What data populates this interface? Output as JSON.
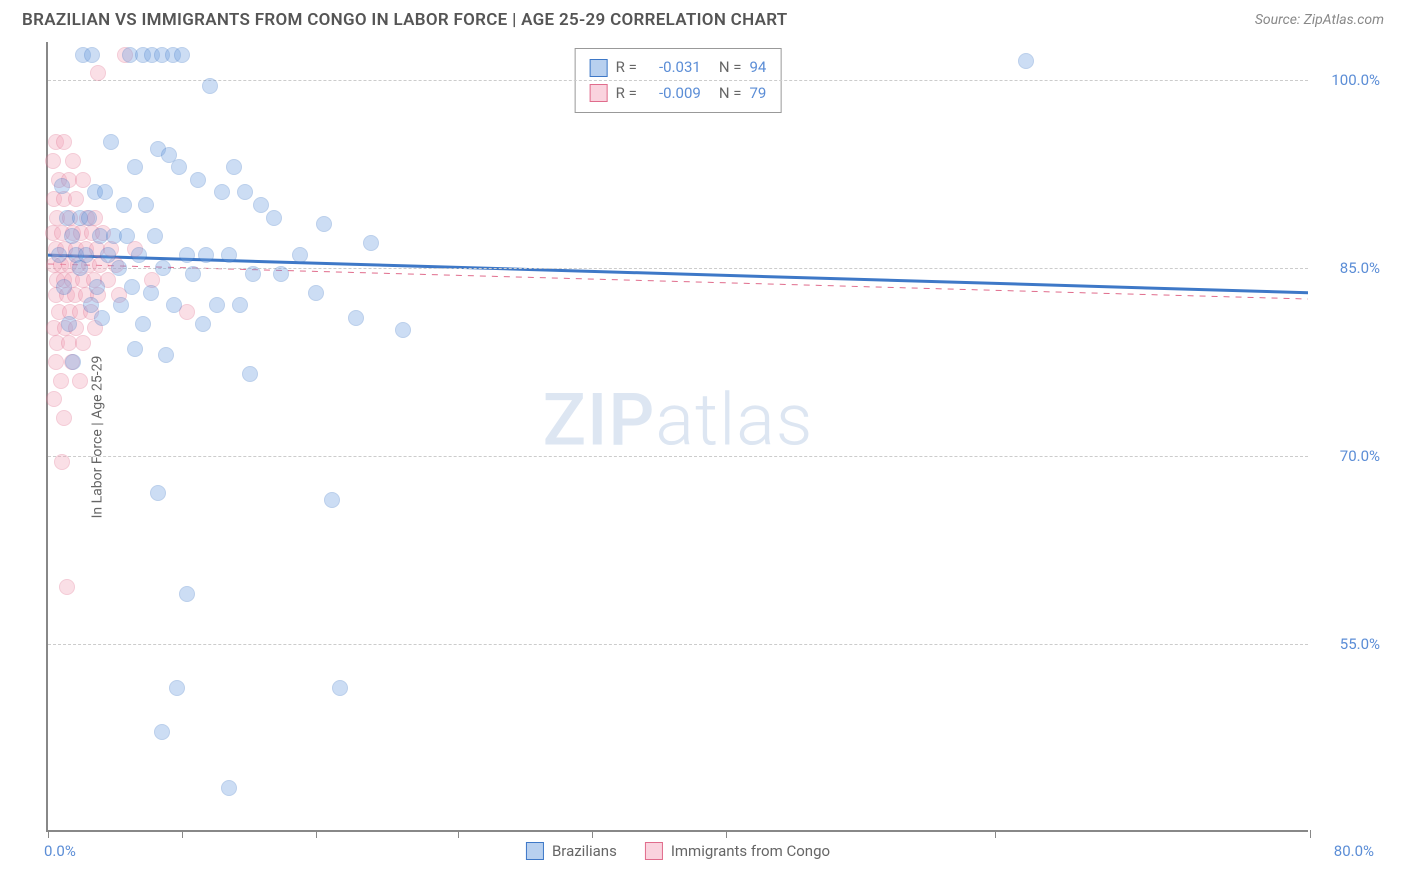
{
  "title": "BRAZILIAN VS IMMIGRANTS FROM CONGO IN LABOR FORCE | AGE 25-29 CORRELATION CHART",
  "source": "Source: ZipAtlas.com",
  "watermark_a": "ZIP",
  "watermark_b": "atlas",
  "chart": {
    "type": "scatter",
    "background_color": "#ffffff",
    "axis_color": "#888888",
    "grid_color": "#cccccc",
    "label_color": "#5b8dd6",
    "text_color": "#666666",
    "y_axis_title": "In Labor Force | Age 25-29",
    "xlim": [
      0,
      80
    ],
    "ylim": [
      40,
      103
    ],
    "x_ticks": [
      0,
      8.5,
      17,
      26,
      34.5,
      43,
      60,
      80
    ],
    "x_tick_labels": {
      "min": "0.0%",
      "max": "80.0%"
    },
    "y_ticks": [
      {
        "v": 100.0,
        "label": "100.0%"
      },
      {
        "v": 85.0,
        "label": "85.0%"
      },
      {
        "v": 70.0,
        "label": "70.0%"
      },
      {
        "v": 55.0,
        "label": "55.0%"
      }
    ],
    "point_radius": 8,
    "point_fill_opacity": 0.35,
    "series": [
      {
        "name": "Brazilians",
        "color": "#6fa0e0",
        "stroke": "#3e78c7",
        "R": "-0.031",
        "N": "94",
        "trend": {
          "y0": 86.0,
          "y1": 83.0,
          "width": 3,
          "dash": false
        },
        "points": [
          [
            2.2,
            102
          ],
          [
            2.8,
            102
          ],
          [
            5.2,
            102
          ],
          [
            6.0,
            102
          ],
          [
            6.6,
            102
          ],
          [
            7.2,
            102
          ],
          [
            7.9,
            102
          ],
          [
            8.5,
            102
          ],
          [
            62,
            101.5
          ],
          [
            10.3,
            99.5
          ],
          [
            4.0,
            95
          ],
          [
            7.0,
            94.5
          ],
          [
            7.7,
            94
          ],
          [
            5.5,
            93
          ],
          [
            8.3,
            93
          ],
          [
            11.8,
            93
          ],
          [
            0.9,
            91.5
          ],
          [
            3.0,
            91
          ],
          [
            3.6,
            91
          ],
          [
            9.5,
            92
          ],
          [
            11.0,
            91
          ],
          [
            12.5,
            91
          ],
          [
            4.8,
            90
          ],
          [
            6.2,
            90
          ],
          [
            13.5,
            90
          ],
          [
            1.2,
            89
          ],
          [
            2.0,
            89
          ],
          [
            2.6,
            89
          ],
          [
            14.3,
            89
          ],
          [
            17.5,
            88.5
          ],
          [
            20.5,
            87
          ],
          [
            1.5,
            87.5
          ],
          [
            3.3,
            87.5
          ],
          [
            4.2,
            87.5
          ],
          [
            5.0,
            87.5
          ],
          [
            6.8,
            87.5
          ],
          [
            0.7,
            86
          ],
          [
            1.8,
            86
          ],
          [
            2.4,
            86
          ],
          [
            3.8,
            86
          ],
          [
            5.8,
            86
          ],
          [
            8.8,
            86
          ],
          [
            10.0,
            86
          ],
          [
            11.5,
            86
          ],
          [
            16.0,
            86
          ],
          [
            2.0,
            85
          ],
          [
            4.5,
            85
          ],
          [
            7.3,
            85
          ],
          [
            9.2,
            84.5
          ],
          [
            13.0,
            84.5
          ],
          [
            14.8,
            84.5
          ],
          [
            1.0,
            83.5
          ],
          [
            3.1,
            83.5
          ],
          [
            5.3,
            83.5
          ],
          [
            6.5,
            83
          ],
          [
            17.0,
            83
          ],
          [
            2.7,
            82
          ],
          [
            4.6,
            82
          ],
          [
            8.0,
            82
          ],
          [
            10.7,
            82
          ],
          [
            12.2,
            82
          ],
          [
            1.3,
            80.5
          ],
          [
            3.4,
            81
          ],
          [
            6.0,
            80.5
          ],
          [
            9.8,
            80.5
          ],
          [
            19.5,
            81
          ],
          [
            22.5,
            80
          ],
          [
            5.5,
            78.5
          ],
          [
            7.5,
            78
          ],
          [
            1.6,
            77.5
          ],
          [
            12.8,
            76.5
          ],
          [
            7.0,
            67
          ],
          [
            18.0,
            66.5
          ],
          [
            8.8,
            59
          ],
          [
            8.2,
            51.5
          ],
          [
            18.5,
            51.5
          ],
          [
            7.2,
            48
          ],
          [
            11.5,
            43.5
          ]
        ]
      },
      {
        "name": "Immigrants from Congo",
        "color": "#f2a6ba",
        "stroke": "#e06c8c",
        "R": "-0.009",
        "N": "79",
        "trend": {
          "y0": 85.3,
          "y1": 82.5,
          "width": 1,
          "dash": true
        },
        "points": [
          [
            4.9,
            102
          ],
          [
            3.2,
            100.5
          ],
          [
            0.5,
            95
          ],
          [
            1.0,
            95
          ],
          [
            0.3,
            93.5
          ],
          [
            1.6,
            93.5
          ],
          [
            0.7,
            92
          ],
          [
            1.3,
            92
          ],
          [
            2.2,
            92
          ],
          [
            0.4,
            90.5
          ],
          [
            1.0,
            90.5
          ],
          [
            1.8,
            90.5
          ],
          [
            0.6,
            89
          ],
          [
            1.4,
            89
          ],
          [
            2.5,
            89
          ],
          [
            3.0,
            89
          ],
          [
            0.3,
            87.8
          ],
          [
            0.9,
            87.8
          ],
          [
            1.6,
            87.8
          ],
          [
            2.1,
            87.8
          ],
          [
            2.8,
            87.8
          ],
          [
            3.5,
            87.8
          ],
          [
            0.5,
            86.5
          ],
          [
            1.1,
            86.5
          ],
          [
            1.8,
            86.5
          ],
          [
            2.4,
            86.5
          ],
          [
            3.1,
            86.5
          ],
          [
            4.0,
            86.5
          ],
          [
            5.5,
            86.5
          ],
          [
            0.4,
            85.2
          ],
          [
            0.8,
            85.2
          ],
          [
            1.3,
            85.2
          ],
          [
            1.9,
            85.2
          ],
          [
            2.6,
            85.2
          ],
          [
            3.3,
            85.2
          ],
          [
            4.3,
            85.2
          ],
          [
            0.6,
            84
          ],
          [
            1.0,
            84
          ],
          [
            1.5,
            84
          ],
          [
            2.2,
            84
          ],
          [
            2.9,
            84
          ],
          [
            3.8,
            84
          ],
          [
            6.6,
            84
          ],
          [
            0.5,
            82.8
          ],
          [
            1.2,
            82.8
          ],
          [
            1.7,
            82.8
          ],
          [
            2.4,
            82.8
          ],
          [
            3.2,
            82.8
          ],
          [
            4.5,
            82.8
          ],
          [
            0.7,
            81.5
          ],
          [
            1.4,
            81.5
          ],
          [
            2.0,
            81.5
          ],
          [
            2.7,
            81.5
          ],
          [
            8.8,
            81.5
          ],
          [
            0.4,
            80.2
          ],
          [
            1.1,
            80.2
          ],
          [
            1.8,
            80.2
          ],
          [
            3.0,
            80.2
          ],
          [
            0.6,
            79
          ],
          [
            1.3,
            79
          ],
          [
            2.2,
            79
          ],
          [
            0.5,
            77.5
          ],
          [
            1.5,
            77.5
          ],
          [
            0.8,
            76
          ],
          [
            2.0,
            76
          ],
          [
            0.4,
            74.5
          ],
          [
            1.0,
            73
          ],
          [
            0.9,
            69.5
          ],
          [
            1.2,
            59.5
          ]
        ]
      }
    ]
  },
  "legend_bottom": [
    {
      "label": "Brazilians",
      "fill": "#b8d0ef",
      "stroke": "#3e78c7"
    },
    {
      "label": "Immigrants from Congo",
      "fill": "#fad3de",
      "stroke": "#e06c8c"
    }
  ],
  "legend_top": [
    {
      "fill": "#b8d0ef",
      "stroke": "#3e78c7",
      "R_label": "R =",
      "R": "-0.031",
      "N_label": "N =",
      "N": "94"
    },
    {
      "fill": "#fad3de",
      "stroke": "#e06c8c",
      "R_label": "R =",
      "R": "-0.009",
      "N_label": "N =",
      "N": "79"
    }
  ]
}
